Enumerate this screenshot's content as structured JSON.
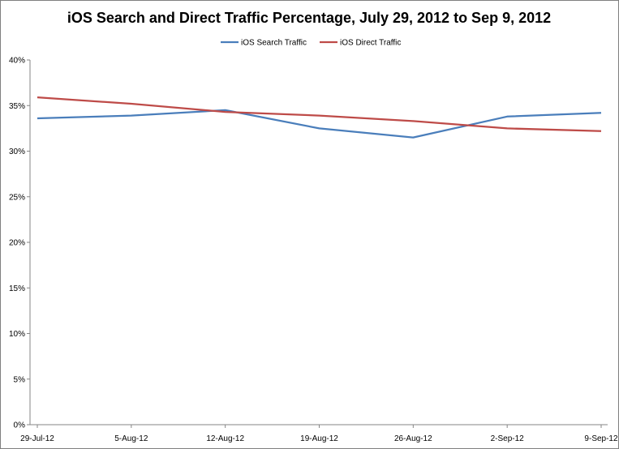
{
  "chart_data": {
    "type": "line",
    "title": "iOS Search and Direct Traffic Percentage, July 29, 2012 to Sep 9, 2012",
    "categories": [
      "29-Jul-12",
      "5-Aug-12",
      "12-Aug-12",
      "19-Aug-12",
      "26-Aug-12",
      "2-Sep-12",
      "9-Sep-12"
    ],
    "y_ticks": [
      "0%",
      "5%",
      "10%",
      "15%",
      "20%",
      "25%",
      "30%",
      "35%",
      "40%"
    ],
    "ylim": [
      0,
      40
    ],
    "grid": false,
    "legend_position": "top",
    "series": [
      {
        "name": "iOS Search Traffic",
        "color": "#4a7ebb",
        "values": [
          33.6,
          33.9,
          34.5,
          32.5,
          31.5,
          33.8,
          34.2
        ]
      },
      {
        "name": "iOS Direct Traffic",
        "color": "#be4b48",
        "values": [
          35.9,
          35.2,
          34.3,
          33.9,
          33.3,
          32.5,
          32.2
        ]
      }
    ]
  }
}
